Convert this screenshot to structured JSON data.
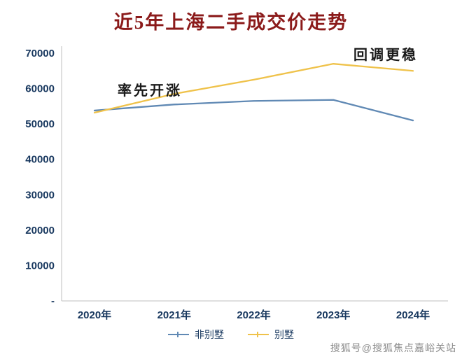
{
  "chart_data": {
    "type": "line",
    "title": "近5年上海二手成交价走势",
    "categories": [
      "2020年",
      "2021年",
      "2022年",
      "2023年",
      "2024年"
    ],
    "series": [
      {
        "name": "非别墅",
        "color": "#6089B4",
        "values": [
          53800,
          55500,
          56500,
          56800,
          51000
        ]
      },
      {
        "name": "别墅",
        "color": "#EFC24A",
        "values": [
          53200,
          58500,
          62500,
          67000,
          65000
        ]
      }
    ],
    "xlabel": "",
    "ylabel": "",
    "ylim": [
      0,
      70000
    ],
    "ytick_step": 10000,
    "ytick_labels": [
      "-",
      "10000",
      "20000",
      "30000",
      "40000",
      "50000",
      "60000",
      "70000"
    ],
    "grid": false,
    "legend_position": "bottom",
    "annotations": [
      {
        "text": "率先开涨",
        "target_series": "别墅",
        "near_category": "2021年"
      },
      {
        "text": "回调更稳",
        "target_series": "别墅",
        "near_category": "2023年"
      }
    ]
  },
  "colors": {
    "title": "#8B1A1A",
    "axis_text": "#17375E",
    "axis_line": "#BFBFBF",
    "annotation": "#1A1A1A",
    "watermark": "#8C8C8C"
  },
  "watermark": {
    "text": "搜狐号@搜狐焦点嘉峪关站"
  }
}
